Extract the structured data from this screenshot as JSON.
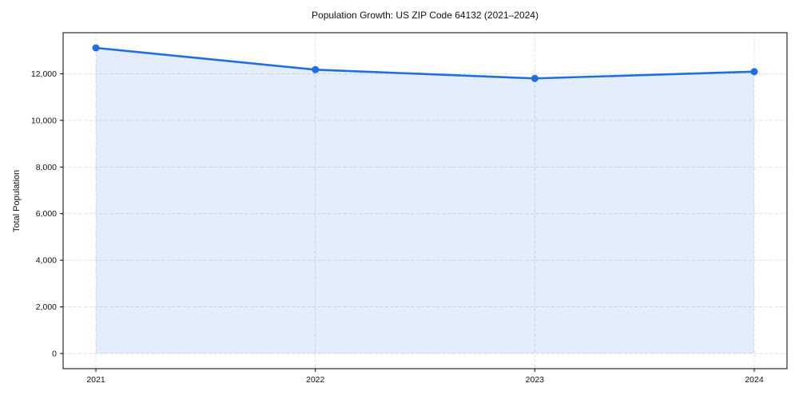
{
  "chart_data": {
    "type": "line",
    "title": "Population Growth: US ZIP Code 64132 (2021–2024)",
    "xlabel": "",
    "ylabel": "Total Population",
    "x": [
      "2021",
      "2022",
      "2023",
      "2024"
    ],
    "series": [
      {
        "name": "Total Population",
        "values": [
          13110,
          12175,
          11800,
          12090
        ]
      }
    ],
    "ylim": [
      -650,
      13760
    ],
    "yticks": [
      0,
      2000,
      4000,
      6000,
      8000,
      10000,
      12000
    ],
    "ytick_labels": [
      "0",
      "2,000",
      "4,000",
      "6,000",
      "8,000",
      "10,000",
      "12,000"
    ],
    "grid": true,
    "grid_style": "dashed",
    "legend": "none",
    "line_color": "#1f6fe0",
    "fill_color": "#1f6fe0",
    "fill_opacity": 0.12,
    "marker": "circle",
    "spine_color": "#000000",
    "background_color": "#ffffff"
  }
}
